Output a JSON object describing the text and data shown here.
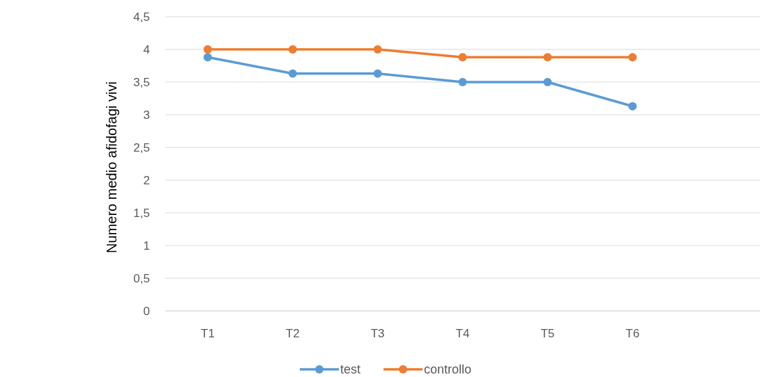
{
  "chart_data": {
    "type": "line",
    "ylabel": "Numero medio afidofagi vivi",
    "categories": [
      "T1",
      "T2",
      "T3",
      "T4",
      "T5",
      "T6",
      null
    ],
    "series": [
      {
        "name": "test",
        "color": "#5b9bd5",
        "values": [
          3.88,
          3.63,
          3.63,
          3.5,
          3.5,
          3.13,
          null
        ]
      },
      {
        "name": "controllo",
        "color": "#ed7d31",
        "values": [
          4,
          4,
          4,
          3.88,
          3.88,
          3.88,
          null
        ]
      }
    ],
    "ylim": [
      0,
      4.5
    ],
    "yticks": [
      0,
      {
        "value": 0.5,
        "label": "0,5"
      },
      1,
      {
        "value": 1.5,
        "label": "1,5"
      },
      2,
      {
        "value": 2.5,
        "label": "2,5"
      },
      3,
      {
        "value": 3.5,
        "label": "3,5"
      },
      4,
      {
        "value": 4.5,
        "label": "4,5"
      }
    ],
    "grid": "y",
    "legend": "bottom",
    "marker": "circle",
    "line_style": "solid"
  }
}
